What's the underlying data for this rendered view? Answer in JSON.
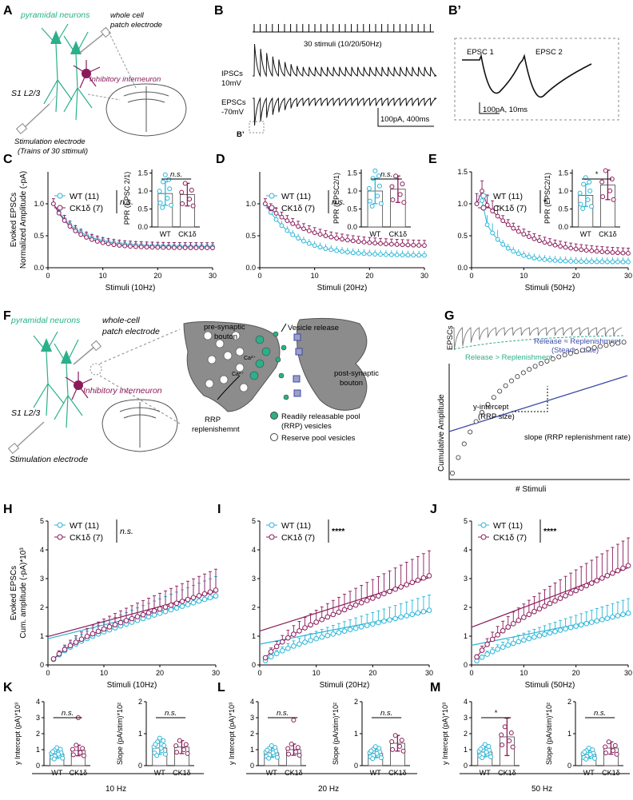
{
  "colors": {
    "wt": "#29b6d8",
    "ck": "#8b1a5a",
    "green": "#2ab08a",
    "blue": "#3c4aa8",
    "grey": "#8c8c8c"
  },
  "labels": {
    "A": "A",
    "B": "B",
    "Bp": "B’",
    "C": "C",
    "D": "D",
    "E": "E",
    "F": "F",
    "G": "G",
    "H": "H",
    "I": "I",
    "J": "J",
    "K": "K",
    "L": "L",
    "M": "M"
  },
  "panelA": {
    "pyr": "pyramidal neurons",
    "wc1": "whole cell",
    "wc2": "patch electrode",
    "inter": "Inhibitory interneuron",
    "layer": "S1 L2/3",
    "stim1": "Stimulation electrode",
    "stim2": "(Trains of 30 sttimuli)"
  },
  "panelB": {
    "stimuli": "30 stimuli (10/20/50Hz)",
    "ipsc1": "IPSCs",
    "ipsc2": "10mV",
    "epsc1": "EPSCs",
    "epsc2": "-70mV",
    "scale": "100pA, 400ms",
    "bp": "B’"
  },
  "panelBp": {
    "e1": "EPSC 1",
    "e2": "EPSC 2",
    "scale": "100pA, 10ms"
  },
  "panelF": {
    "pyr": "pyramidal neurons",
    "wc1": "whole-cell",
    "wc2": "patch electrode",
    "inter": "Inhibitory interneuron",
    "layer": "S1 L2/3",
    "stim": "Stimulation electrode",
    "pre1": "pre-synaptic",
    "pre2": "bouton",
    "vr": "Vesicle release",
    "post1": "post-synaptic",
    "post2": "bouton",
    "ca": "Ca²⁺",
    "rrp1": "RRP",
    "rrp2": "replenishemnt",
    "leg1a": "Readily releasable pool",
    "leg1b": "(RRP) vesicles",
    "leg2": "Reserve pool vesicles"
  },
  "panelG": {
    "epscs": "EPSCs",
    "rel1": "Release ≈ Replenishment",
    "rel2": "(Steady state)",
    "rel3": "Release > Replenishment",
    "yint1": "y-intercept",
    "yint2": "(RRP size)",
    "slope": "slope (RRP replenishment rate)",
    "ylab": "Cumulative Amplitude",
    "xlab": "# Stimuli"
  },
  "chart_data": [
    {
      "id": "C",
      "type": "line",
      "title": "",
      "xlabel": "Stimuli (10Hz)",
      "ylabel": "Evoked EPSCs Normalized Amplitude (-pA)",
      "ylabel_lines": [
        "Evoked EPSCs",
        "Normalized Amplitude (-pA)"
      ],
      "xlim": [
        0,
        30
      ],
      "ylim": [
        0,
        1.5
      ],
      "xticks": [
        "0",
        "10",
        "20",
        "30"
      ],
      "yticks": [
        "0.0",
        "0.5",
        "1.0"
      ],
      "legend": [
        "WT (11)",
        "CK1δ (7)"
      ],
      "stat": "n.s.",
      "decay": [
        0.34,
        0.35
      ]
    },
    {
      "id": "D",
      "type": "line",
      "xlabel": "Stimuli (20Hz)",
      "xlim": [
        0,
        30
      ],
      "ylim": [
        0,
        1.5
      ],
      "xticks": [
        "0",
        "10",
        "20",
        "30"
      ],
      "yticks": [
        "0.0",
        "0.5",
        "1.0"
      ],
      "legend": [
        "WT (11)",
        "CK1δ (7)"
      ],
      "stat": "n.s."
    },
    {
      "id": "E",
      "type": "line",
      "xlabel": "Stimuli (50Hz)",
      "xlim": [
        0,
        30
      ],
      "ylim": [
        0,
        1.5
      ],
      "xticks": [
        "0",
        "10",
        "20",
        "30"
      ],
      "yticks": [
        "0.0",
        "0.5",
        "1.0",
        "1.5"
      ],
      "legend": [
        "WT (11)",
        "CK1δ (7)"
      ],
      "stat": "*"
    },
    {
      "id": "C-inset",
      "type": "bar",
      "ylabel": "PPR (EPSC 2/1)",
      "categories": [
        "WT",
        "CK1δ"
      ],
      "values": [
        0.93,
        0.9
      ],
      "ylim": [
        0,
        1.6
      ],
      "stat": "n.s."
    },
    {
      "id": "D-inset",
      "type": "bar",
      "ylabel": "PPR (EPSC2/1)",
      "categories": [
        "WT",
        "CK1δ"
      ],
      "values": [
        1.0,
        1.05
      ],
      "ylim": [
        0,
        1.6
      ],
      "stat": "n.s."
    },
    {
      "id": "E-inset",
      "type": "bar",
      "ylabel": "PPR (EPSC2/1)",
      "categories": [
        "WT",
        "CK1δ"
      ],
      "values": [
        0.88,
        1.17
      ],
      "ylim": [
        0,
        1.6
      ],
      "stat": "*"
    },
    {
      "id": "H",
      "type": "line",
      "xlabel": "Stimuli (10Hz)",
      "ylabel_lines": [
        "Evoked EPSCs",
        "Cum. amplitude (-pA)*10³"
      ],
      "xlim": [
        0,
        30
      ],
      "ylim": [
        0,
        5
      ],
      "xticks": [
        "0",
        "10",
        "20",
        "30"
      ],
      "yticks": [
        "0",
        "1",
        "2",
        "3",
        "4",
        "5"
      ],
      "legend": [
        "WT (11)",
        "CK1δ (7)"
      ],
      "stat": "n.s.",
      "end_values": [
        2.4,
        2.6
      ]
    },
    {
      "id": "I",
      "type": "line",
      "xlabel": "Stimuli (20Hz)",
      "xlim": [
        0,
        30
      ],
      "ylim": [
        0,
        5
      ],
      "xticks": [
        "0",
        "10",
        "20",
        "30"
      ],
      "yticks": [
        "0",
        "1",
        "2",
        "3",
        "4",
        "5"
      ],
      "legend": [
        "WT (11)",
        "CK1δ (7)"
      ],
      "stat": "****",
      "end_values": [
        1.9,
        3.1
      ]
    },
    {
      "id": "J",
      "type": "line",
      "xlabel": "Stimuli (50Hz)",
      "xlim": [
        0,
        30
      ],
      "ylim": [
        0,
        5
      ],
      "xticks": [
        "0",
        "10",
        "20",
        "30"
      ],
      "yticks": [
        "0",
        "1",
        "2",
        "3",
        "4",
        "5"
      ],
      "legend": [
        "WT (11)",
        "CK1δ (7)"
      ],
      "stat": "****",
      "end_values": [
        1.8,
        3.45
      ]
    },
    {
      "id": "K1",
      "type": "bar",
      "ylabel": "y Intercept (pA)*10³",
      "categories": [
        "WT",
        "CK1δ"
      ],
      "values": [
        0.72,
        0.95
      ],
      "ylim": [
        0,
        4
      ],
      "yticks": [
        "0",
        "1",
        "2",
        "3",
        "4"
      ],
      "stat": "n.s."
    },
    {
      "id": "K2",
      "type": "bar",
      "ylabel": "Slope (pA/stim)*10²",
      "categories": [
        "WT",
        "CK1δ"
      ],
      "values": [
        0.55,
        0.58
      ],
      "ylim": [
        0,
        2
      ],
      "yticks": [
        "0",
        "1",
        "2"
      ],
      "stat": "n.s."
    },
    {
      "id": "L1",
      "type": "bar",
      "ylabel": "y Intercept (pA)*10³",
      "categories": [
        "WT",
        "CK1δ"
      ],
      "values": [
        0.8,
        1.0
      ],
      "ylim": [
        0,
        4
      ],
      "yticks": [
        "0",
        "1",
        "2",
        "3",
        "4"
      ],
      "stat": "n.s."
    },
    {
      "id": "L2",
      "type": "bar",
      "ylabel": "Slope (pA/stim)*10²",
      "categories": [
        "WT",
        "CK1δ"
      ],
      "values": [
        0.38,
        0.7
      ],
      "ylim": [
        0,
        2
      ],
      "yticks": [
        "0",
        "1",
        "2"
      ],
      "stat": "n.s."
    },
    {
      "id": "M1",
      "type": "bar",
      "ylabel": "y Intercept (pA)*10³",
      "categories": [
        "WT",
        "CK1δ"
      ],
      "values": [
        0.85,
        1.8
      ],
      "ylim": [
        0,
        4
      ],
      "yticks": [
        "0",
        "1",
        "2",
        "3",
        "4"
      ],
      "stat": "*"
    },
    {
      "id": "M2",
      "type": "bar",
      "ylabel": "Slope (pA/stim)*10²",
      "categories": [
        "WT",
        "CK1δ"
      ],
      "values": [
        0.35,
        0.55
      ],
      "ylim": [
        0,
        2
      ],
      "yticks": [
        "0",
        "1",
        "2"
      ],
      "stat": "n.s."
    }
  ],
  "group_labels": {
    "K": "10 Hz",
    "L": "20 Hz",
    "M": "50 Hz"
  }
}
